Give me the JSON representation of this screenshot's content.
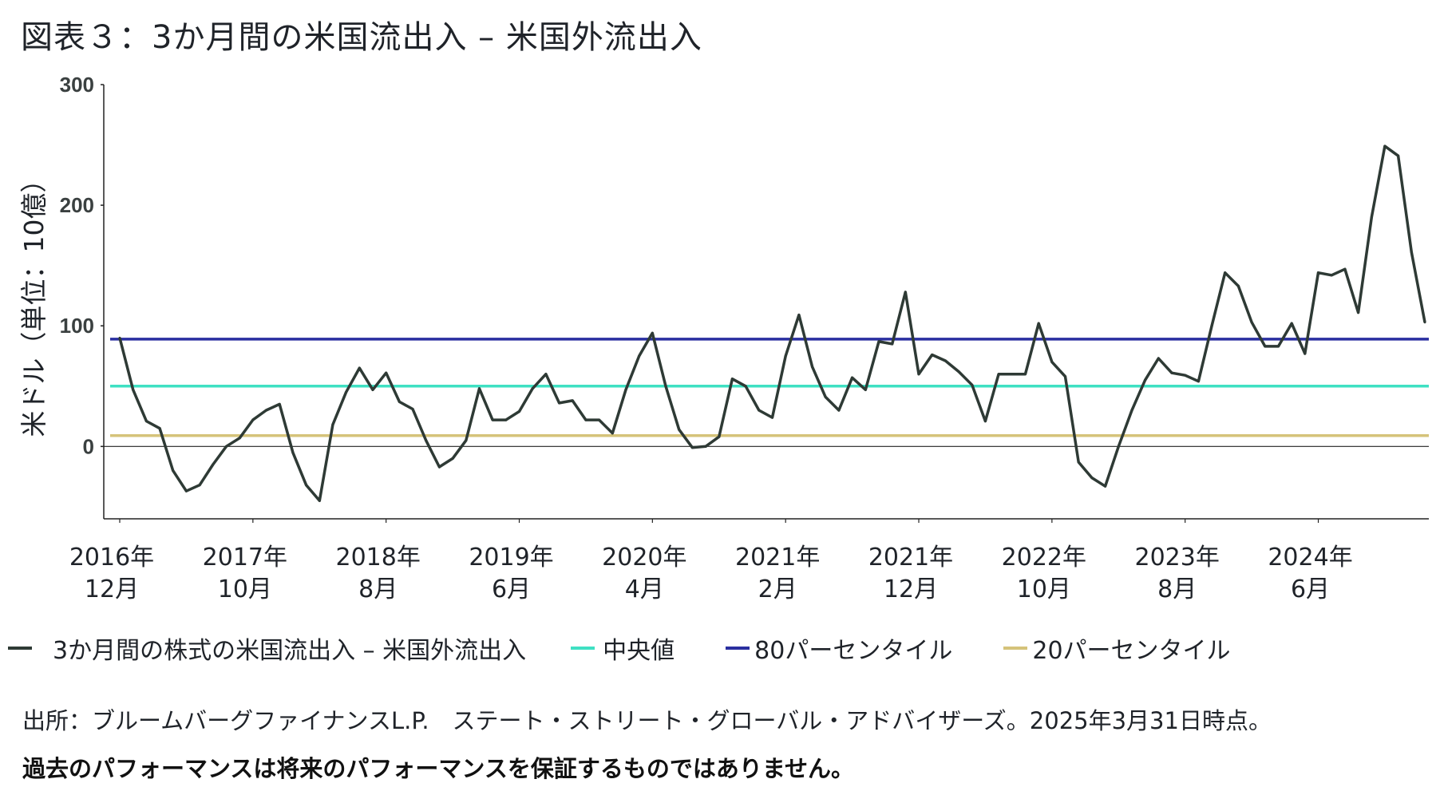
{
  "title": "図表３：3か月間の米国流出入 – 米国外流出入",
  "source": "出所：ブルームバーグファイナンスL.P.　ステート・ストリート・グローバル・アドバイザーズ。2025年3月31日時点。",
  "disclaimer": "過去のパフォーマンスは将来のパフォーマンスを保証するものではありません。",
  "colors": {
    "series": "#2e3a35",
    "median": "#3fe0c3",
    "p80": "#2a2fa0",
    "p20": "#d5c37a",
    "zero": "#222222",
    "axis": "#222222"
  },
  "chart_data": {
    "type": "line",
    "ylabel": "米ドル（単位：10億）",
    "xlabel": "",
    "ylim": [
      -60,
      300
    ],
    "yticks": [
      0,
      100,
      200,
      300
    ],
    "x_tick_labels": [
      {
        "line1": "2016年",
        "line2": "12月",
        "index": 0
      },
      {
        "line1": "2017年",
        "line2": "10月",
        "index": 10
      },
      {
        "line1": "2018年",
        "line2": "8月",
        "index": 20
      },
      {
        "line1": "2019年",
        "line2": "6月",
        "index": 30
      },
      {
        "line1": "2020年",
        "line2": "4月",
        "index": 40
      },
      {
        "line1": "2021年",
        "line2": "2月",
        "index": 50
      },
      {
        "line1": "2021年",
        "line2": "12月",
        "index": 60
      },
      {
        "line1": "2022年",
        "line2": "10月",
        "index": 70
      },
      {
        "line1": "2023年",
        "line2": "8月",
        "index": 80
      },
      {
        "line1": "2024年",
        "line2": "6月",
        "index": 90
      }
    ],
    "series": [
      {
        "name": "3か月間の株式の米国流出入 – 米国外流出入",
        "values": [
          90,
          47,
          21,
          15,
          -20,
          -37,
          -32,
          -15,
          0,
          7,
          22,
          30,
          35,
          -5,
          -32,
          -45,
          18,
          45,
          65,
          47,
          61,
          37,
          31,
          5,
          -17,
          -10,
          5,
          48,
          22,
          22,
          29,
          48,
          60,
          36,
          38,
          22,
          22,
          11,
          47,
          75,
          94,
          50,
          14,
          -1,
          0,
          8,
          56,
          50,
          30,
          24,
          75,
          109,
          66,
          41,
          30,
          57,
          47,
          87,
          85,
          128,
          60,
          76,
          71,
          62,
          51,
          21,
          60,
          60,
          60,
          102,
          70,
          58,
          -13,
          -26,
          -33,
          0,
          30,
          55,
          73,
          61,
          59,
          54,
          100,
          144,
          133,
          103,
          83,
          83,
          102,
          77,
          144,
          142,
          147,
          111,
          190,
          249,
          241,
          161,
          103
        ]
      }
    ],
    "reference_lines": [
      {
        "name": "中央値",
        "value": 50
      },
      {
        "name": "80パーセンタイル",
        "value": 89
      },
      {
        "name": "20パーセンタイル",
        "value": 9
      }
    ]
  },
  "legend": {
    "series": "3か月間の株式の米国流出入 – 米国外流出入",
    "median": "中央値",
    "p80": "80パーセンタイル",
    "p20": "20パーセンタイル"
  }
}
